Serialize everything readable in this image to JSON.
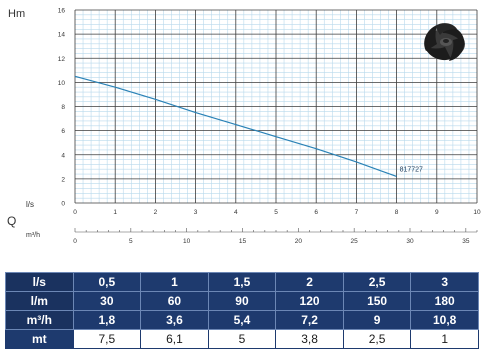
{
  "chart_data": {
    "type": "line",
    "ylabel": "Hm",
    "xlabel": "l/s",
    "x_unit_label": "l/s",
    "q_label": "Q",
    "q_unit_label": "m³/h",
    "xlim": [
      0,
      10
    ],
    "ylim": [
      0,
      16
    ],
    "x_ticks": [
      0,
      1,
      2,
      3,
      4,
      5,
      6,
      7,
      8,
      9,
      10
    ],
    "y_ticks": [
      0,
      2,
      4,
      6,
      8,
      10,
      12,
      14,
      16
    ],
    "q_ticks": [
      0,
      5,
      10,
      15,
      20,
      25,
      30,
      35
    ],
    "q_lim": [
      0,
      36
    ],
    "grid": true,
    "series": [
      {
        "name": "817727",
        "x": [
          0,
          1,
          2,
          3,
          4,
          5,
          6,
          7,
          8
        ],
        "y": [
          10.5,
          9.6,
          8.6,
          7.5,
          6.5,
          5.5,
          4.5,
          3.4,
          2.2
        ],
        "color": "#2a82b6"
      }
    ]
  },
  "table": {
    "rows": [
      {
        "label": "l/s",
        "values": [
          "0,5",
          "1",
          "1,5",
          "2",
          "2,5",
          "3"
        ]
      },
      {
        "label": "l/m",
        "values": [
          "30",
          "60",
          "90",
          "120",
          "150",
          "180"
        ]
      },
      {
        "label": "m³/h",
        "values": [
          "1,8",
          "3,6",
          "5,4",
          "7,2",
          "9",
          "10,8"
        ]
      },
      {
        "label": "mt",
        "values": [
          "7,5",
          "6,1",
          "5",
          "3,8",
          "2,5",
          "1"
        ]
      }
    ]
  },
  "colors": {
    "grid_major": "#3c3c3c",
    "grid_minor": "#b9d9ec",
    "plot_bg": "#ffffff",
    "curve": "#2a82b6",
    "table_header": "#1e3a6e"
  },
  "image": {
    "name": "impeller-icon"
  }
}
